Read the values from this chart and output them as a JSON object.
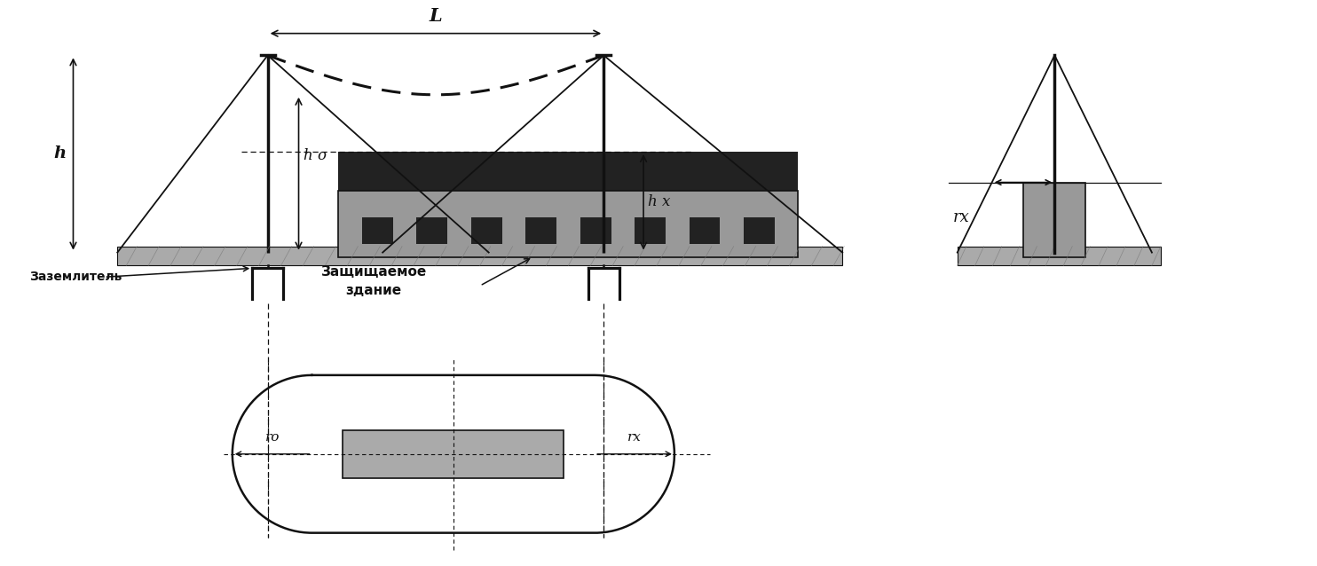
{
  "bg_color": "#ffffff",
  "lc": "#111111",
  "fill_dark": "#222222",
  "fill_medium": "#999999",
  "fill_light": "#bbbbbb",
  "fill_ground": "#aaaaaa",
  "fill_building_plan": "#aaaaaa",
  "figsize": [
    14.84,
    6.38
  ],
  "dpi": 100,
  "labels": {
    "L": "L",
    "h": "h",
    "h0": "h o",
    "hx": "h x",
    "rx_side": "rx",
    "r0": "ro",
    "rx_plan": "rx",
    "zazem": "Заземлитель",
    "zashch1": "Защищаемое",
    "zashch2": "здание"
  }
}
